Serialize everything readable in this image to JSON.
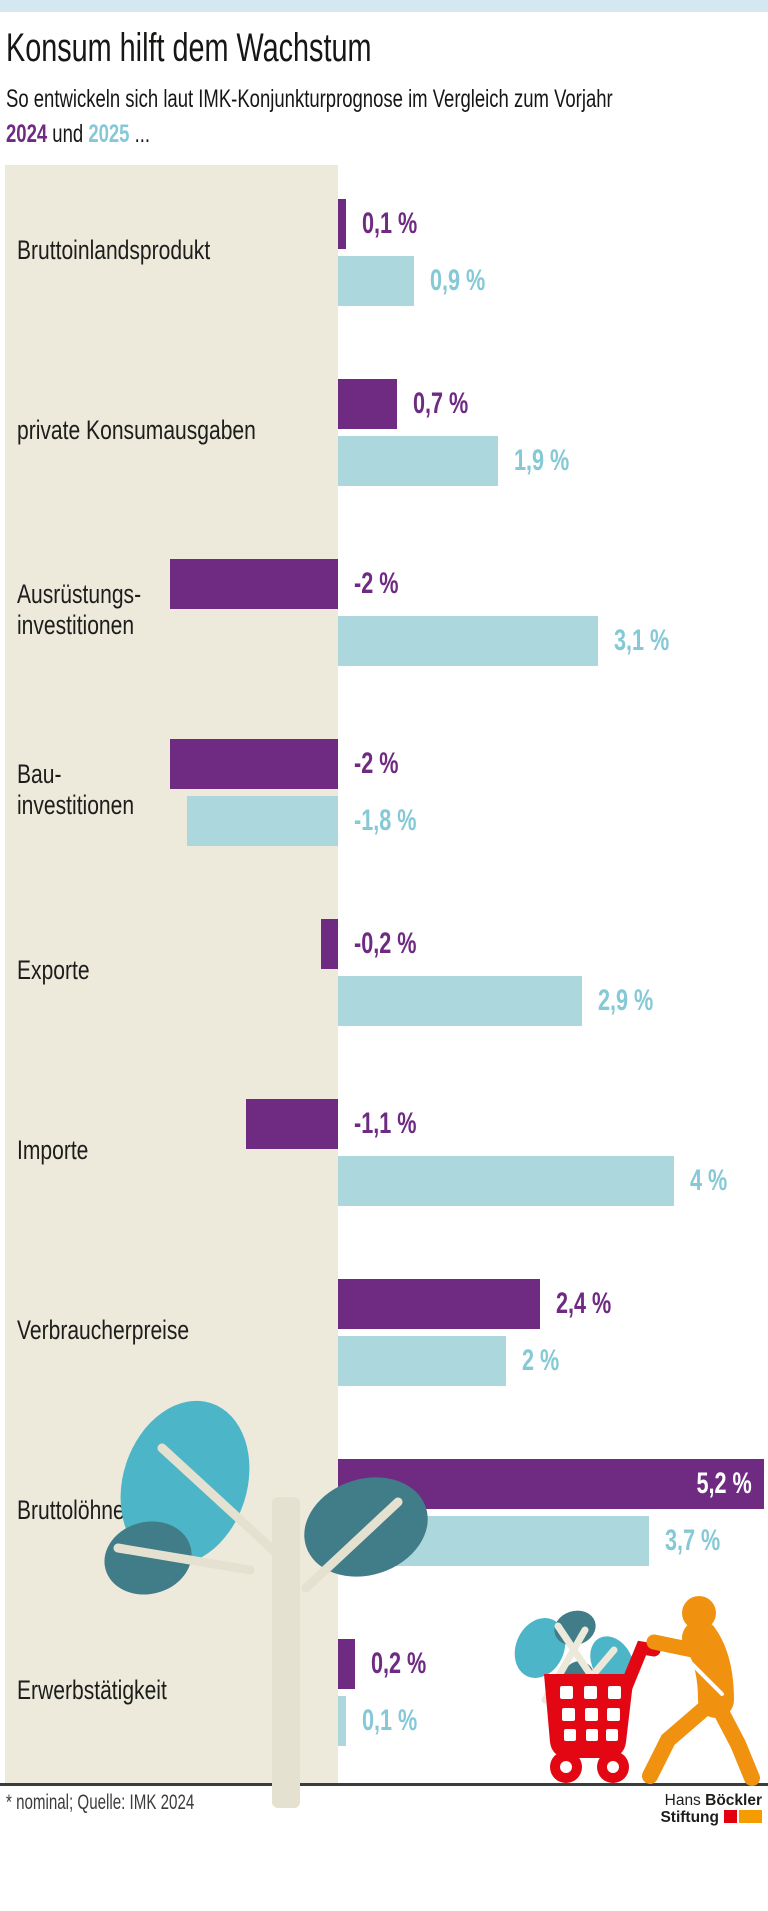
{
  "header": {
    "title": "Konsum hilft dem Wachstum",
    "subtitle_line1": "So entwickeln sich laut IMK-Konjunkturprognose im Vergleich zum Vorjahr",
    "year_2024": "2024",
    "und": " und ",
    "year_2025": "2025",
    "ellipsis": " ..."
  },
  "chart_data": {
    "type": "bar",
    "orientation": "horizontal",
    "unit": "%",
    "series_names": [
      "2024",
      "2025"
    ],
    "axis": {
      "zero_baseline": true,
      "grid": false,
      "value_labels_on_bars": true
    },
    "rows": [
      {
        "category": [
          "Bruttoinlandsprodukt"
        ],
        "v2024": 0.1,
        "l2024": "0,1 %",
        "v2025": 0.9,
        "l2025": "0,9 %"
      },
      {
        "category": [
          "private Konsumausgaben"
        ],
        "v2024": 0.7,
        "l2024": "0,7 %",
        "v2025": 1.9,
        "l2025": "1,9 %"
      },
      {
        "category": [
          "Ausrüstungs-",
          "investitionen"
        ],
        "v2024": -2.0,
        "l2024": "-2 %",
        "v2025": 3.1,
        "l2025": "3,1 %"
      },
      {
        "category": [
          "Bau-",
          "investitionen"
        ],
        "v2024": -2.0,
        "l2024": "-2 %",
        "v2025": -1.8,
        "l2025": "-1,8 %"
      },
      {
        "category": [
          "Exporte"
        ],
        "v2024": -0.2,
        "l2024": "-0,2 %",
        "v2025": 2.9,
        "l2025": "2,9 %"
      },
      {
        "category": [
          "Importe"
        ],
        "v2024": -1.1,
        "l2024": "-1,1 %",
        "v2025": 4.0,
        "l2025": "4 %"
      },
      {
        "category": [
          "Verbraucherpreise"
        ],
        "v2024": 2.4,
        "l2024": "2,4 %",
        "v2025": 2.0,
        "l2025": "2 %"
      },
      {
        "category": [
          "Bruttolöhne*"
        ],
        "v2024": 5.2,
        "l2024": "5,2 %",
        "v2025": 3.7,
        "l2025": "3,7 %",
        "label2024_inside": true
      },
      {
        "category": [
          "Erwerbstätigkeit"
        ],
        "v2024": 0.2,
        "l2024": "0,2 %",
        "v2025": 0.1,
        "l2025": "0,1 %"
      }
    ]
  },
  "footer": {
    "footnote": "* nominal; Quelle: IMK 2024",
    "logo_line1_regular": "Hans ",
    "logo_line1_bold": "Böckler",
    "logo_line2_bold": "Stiftung"
  },
  "colors": {
    "topstrip": "#d5e7f1",
    "bar_2024": "#6f2b82",
    "bar_2025": "#abd7dd",
    "label_2024": "#6f2b82",
    "label_2025": "#85c9d6",
    "label_inside": "#ffffff",
    "panel_beige": "#edeadc",
    "trunk_beige": "#e5e1d0",
    "leaf_light_teal": "#4cb5c8",
    "leaf_dark_teal": "#417d88",
    "cart_red": "#e30613",
    "person_orange": "#f0920f",
    "footer_line": "#3c3c3b",
    "logo_red": "#e3000f",
    "logo_orange": "#f59c00"
  }
}
